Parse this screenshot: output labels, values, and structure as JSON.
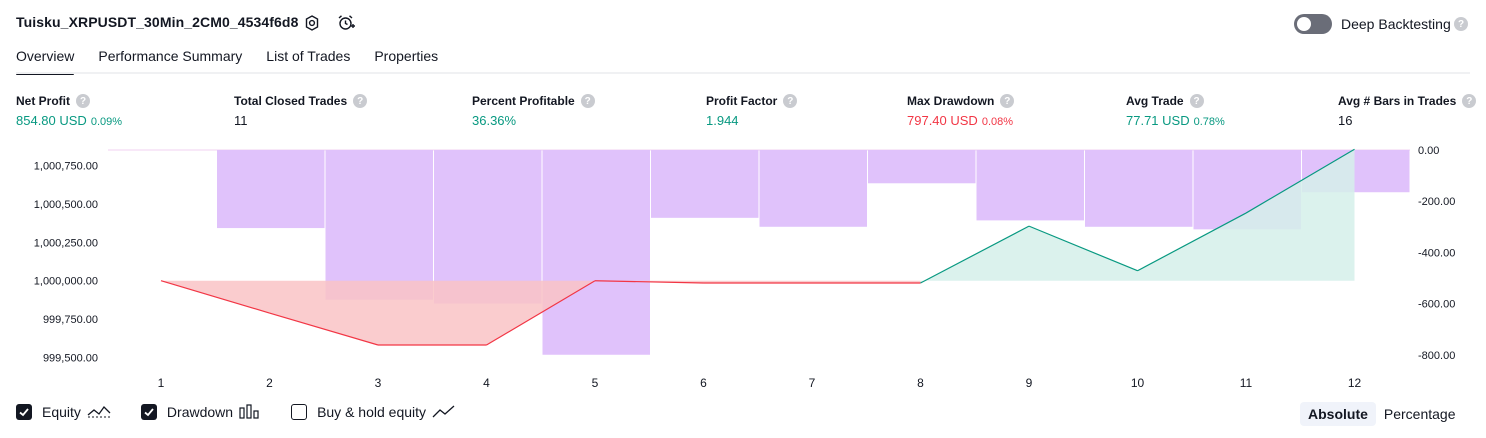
{
  "header": {
    "strategy_name": "Tuisku_XRPUSDT_30Min_2CM0_4534f6d8",
    "deep_backtesting_label": "Deep Backtesting",
    "help_mark": "?"
  },
  "tabs": [
    {
      "label": "Overview",
      "active": true
    },
    {
      "label": "Performance Summary",
      "active": false
    },
    {
      "label": "List of Trades",
      "active": false
    },
    {
      "label": "Properties",
      "active": false
    }
  ],
  "metrics": {
    "net_profit": {
      "label": "Net Profit",
      "value": "854.80 USD",
      "pct": "0.09%"
    },
    "total_closed_trades": {
      "label": "Total Closed Trades",
      "value": "11"
    },
    "percent_profitable": {
      "label": "Percent Profitable",
      "value": "36.36%"
    },
    "profit_factor": {
      "label": "Profit Factor",
      "value": "1.944"
    },
    "max_drawdown": {
      "label": "Max Drawdown",
      "value": "797.40 USD",
      "pct": "0.08%"
    },
    "avg_trade": {
      "label": "Avg Trade",
      "value": "77.71 USD",
      "pct": "0.78%"
    },
    "avg_bars": {
      "label": "Avg # Bars in Trades",
      "value": "16"
    }
  },
  "colors": {
    "profit": "#089981",
    "loss": "#f23645",
    "drawdown_bar": "#e0c2fb",
    "equity_fill_up": "#d5f0ea",
    "equity_fill_down": "#f9c3c6"
  },
  "chart_data": {
    "type": "bar",
    "x": [
      1,
      2,
      3,
      4,
      5,
      6,
      7,
      8,
      9,
      10,
      11,
      12
    ],
    "left_axis_ticks": [
      "1,000,750.00",
      "1,000,500.00",
      "1,000,250.00",
      "1,000,000.00",
      "999,750.00",
      "999,500.00"
    ],
    "right_axis_ticks": [
      "0.00",
      "-200.00",
      "-400.00",
      "-600.00",
      "-800.00"
    ],
    "left_ylim": [
      999400,
      1000850
    ],
    "right_ylim": [
      -840,
      0
    ],
    "series": [
      {
        "name": "Equity",
        "type": "line",
        "values": [
          1000000,
          999790,
          999582,
          999582,
          1000000,
          999985,
          999985,
          999985,
          1000355,
          1000065,
          1000440,
          1000855
        ]
      },
      {
        "name": "Drawdown",
        "type": "bar",
        "values": [
          0,
          -305,
          -585,
          -600,
          -800,
          -265,
          -300,
          -130,
          -275,
          -300,
          -310,
          -165
        ]
      }
    ],
    "legend_position": "bottom-left"
  },
  "legend": [
    {
      "label": "Equity",
      "checked": true,
      "icon": "equity-line-icon"
    },
    {
      "label": "Drawdown",
      "checked": true,
      "icon": "drawdown-bars-icon"
    },
    {
      "label": "Buy & hold equity",
      "checked": false,
      "icon": "buy-hold-line-icon"
    }
  ],
  "scale_toggle": {
    "absolute": "Absolute",
    "percentage": "Percentage",
    "selected": "Absolute"
  }
}
